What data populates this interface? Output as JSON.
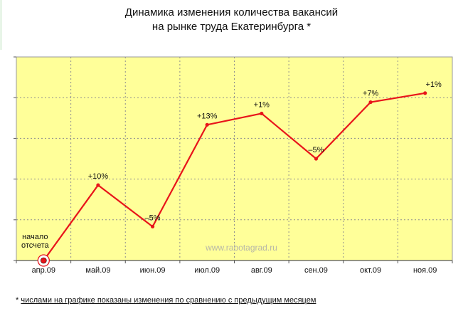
{
  "chart_data": {
    "type": "line",
    "title": [
      "Динамика изменения количества вакансий",
      "на рынке труда Екатеринбурга *"
    ],
    "categories": [
      "апр.09",
      "май.09",
      "июн.09",
      "июл.09",
      "авг.09",
      "сен.09",
      "окт.09",
      "ноя.09"
    ],
    "series": [
      {
        "values": [
          0,
          10,
          -5,
          13,
          1,
          -5,
          7,
          1
        ],
        "point_labels": [
          "",
          "+10%",
          "–5%",
          "+13%",
          "+1%",
          "–5%",
          "+7%",
          "+1%"
        ],
        "index_level": [
          0,
          10,
          4.5,
          18,
          19.5,
          13.5,
          21,
          22.2
        ],
        "color": "#e8141a"
      }
    ],
    "start_annotation": [
      "начало",
      "отсчета"
    ],
    "watermark": "www.rabotagrad.ru",
    "ylim": [
      0,
      27
    ],
    "grid": true,
    "plot_background": "#ffff99"
  },
  "footnote": {
    "marker": "*",
    "text": "числами на графике показаны изменения по сравнению с предыдущим месяцем"
  }
}
